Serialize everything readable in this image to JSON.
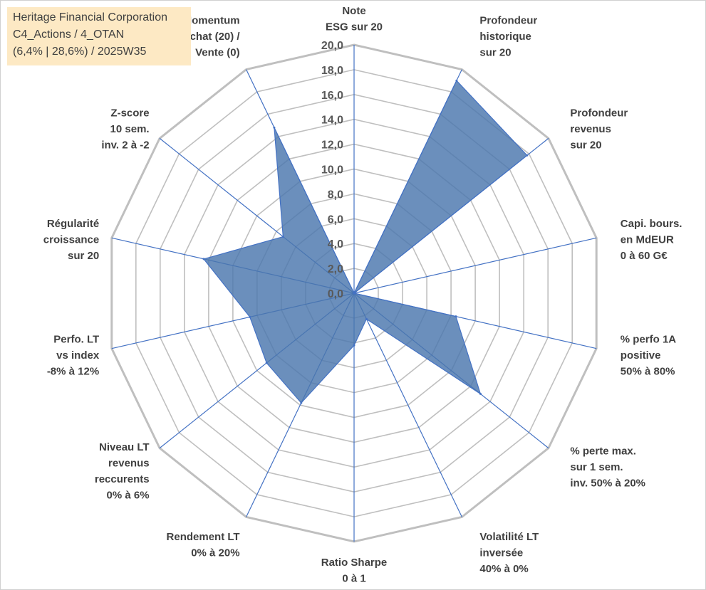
{
  "title": {
    "line1": "Heritage Financial Corporation",
    "line2": "C4_Actions / 4_OTAN",
    "line3": "(6,4% | 28,6%) / 2025W35"
  },
  "chart_data": {
    "type": "radar",
    "rmin": 0,
    "rmax": 20,
    "ticks": [
      "0,0",
      "2,0",
      "4,0",
      "6,0",
      "8,0",
      "10,0",
      "12,0",
      "14,0",
      "16,0",
      "18,0",
      "20,0"
    ],
    "grid": true,
    "colors": {
      "fill": "#4a76ad",
      "line": "#4472c4",
      "grid": "#bfbfbf",
      "spoke": "#4472c4"
    },
    "axes": [
      {
        "label": [
          "Note",
          "ESG sur 20"
        ],
        "value": 0
      },
      {
        "label": [
          "Profondeur",
          "historique",
          "sur 20"
        ],
        "value": 19
      },
      {
        "label": [
          "Profondeur",
          "revenus",
          "sur 20"
        ],
        "value": 17.8
      },
      {
        "label": [
          "Capi. bours.",
          "en MdEUR",
          "0 à 60 G€"
        ],
        "value": 0
      },
      {
        "label": [
          "% perfo 1A",
          "positive",
          "50% à 80%"
        ],
        "value": 8.4
      },
      {
        "label": [
          "% perte max.",
          "sur 1 sem.",
          "inv. 50% à 20%"
        ],
        "value": 13
      },
      {
        "label": [
          "Volatilité LT",
          "inversée",
          "40% à 0%"
        ],
        "value": 2.3
      },
      {
        "label": [
          "Ratio Sharpe",
          "0 à 1"
        ],
        "value": 4.2
      },
      {
        "label": [
          "Rendement LT",
          "0% à 20%"
        ],
        "value": 9.8
      },
      {
        "label": [
          "Niveau LT",
          "revenus",
          "reccurents",
          "0% à 6%"
        ],
        "value": 9
      },
      {
        "label": [
          "Perfo. LT",
          "vs index",
          "-8% à 12%"
        ],
        "value": 8.6
      },
      {
        "label": [
          "Régularité",
          "croissance",
          "sur 20"
        ],
        "value": 12.4
      },
      {
        "label": [
          "Z-score",
          "10 sem.",
          "inv. 2 à -2"
        ],
        "value": 7.3
      },
      {
        "label": [
          "Momentum",
          "Achat (20) /",
          "Vente (0)"
        ],
        "value": 14.8
      }
    ]
  }
}
